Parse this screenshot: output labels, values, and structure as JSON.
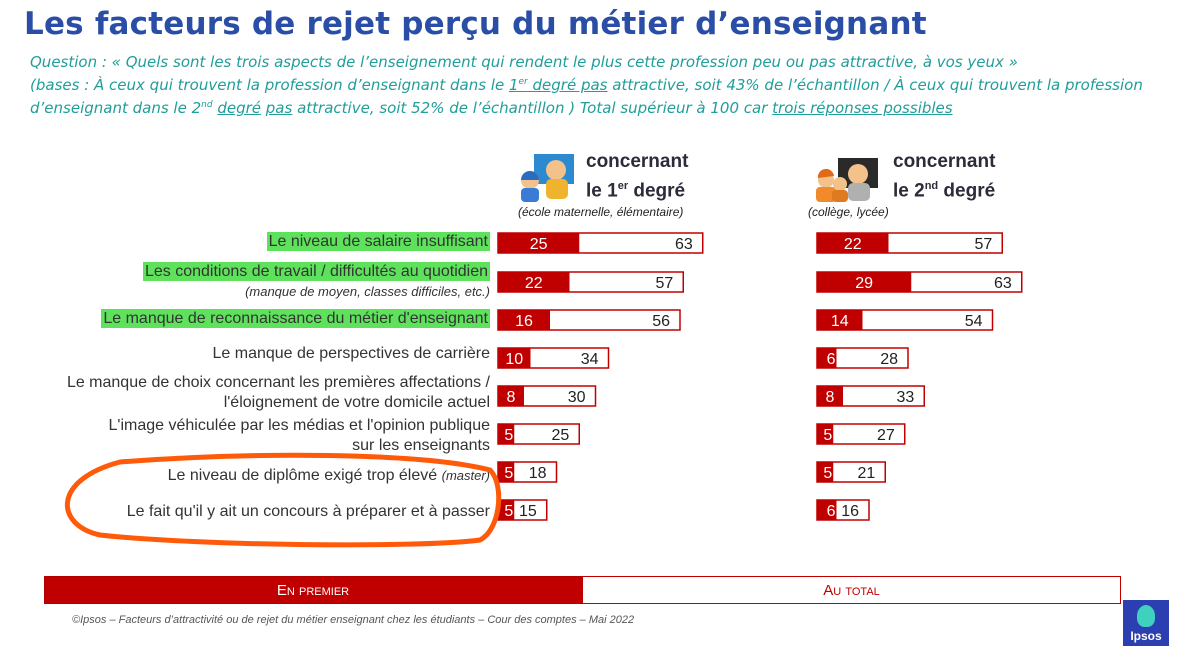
{
  "header": {
    "title": "Les facteurs de rejet perçu du métier d’enseignant",
    "question_line1": "Question : « Quels sont les trois aspects de l’enseignement qui rendent le plus cette profession peu ou pas attractive, à vos yeux  »",
    "bases_a": "(bases : À ceux qui trouvent la profession d’enseignant dans le ",
    "bases_1er": "1",
    "bases_er": "er",
    "bases_degre_pas": " degré pas",
    "bases_b": " attractive, soit 43% de l’échantillon / À ceux qui trouvent la profession",
    "bases_c": "d’enseignant dans le  2",
    "bases_nd": "nd",
    "bases_degre": "degré",
    "bases_pas": "pas",
    "bases_d": " attractive, soit 52% de l’échantillon ) Total supérieur à 100 car ",
    "bases_trois": "trois réponses possibles"
  },
  "groups": {
    "g1": {
      "label_a": "concernant",
      "label_b": "le 1",
      "label_sup": "er",
      "label_c": " degré",
      "sub": "(école maternelle, élémentaire)"
    },
    "g2": {
      "label_a": "concernant",
      "label_b": "le 2",
      "label_sup": "nd",
      "label_c": " degré",
      "sub": "(collège, lycée)"
    }
  },
  "rows": [
    {
      "label": "Le niveau de salaire insuffisant",
      "highlight": true
    },
    {
      "label": "Les conditions de travail / difficultés au quotidien",
      "note": "(manque de moyen, classes difficiles, etc.)",
      "highlight": true
    },
    {
      "label": "Le manque de reconnaissance du métier d'enseignant",
      "highlight": true
    },
    {
      "label": "Le manque de perspectives de carrière"
    },
    {
      "label": "Le manque de choix concernant les premières affectations /",
      "label2": "l'éloignement de votre domicile actuel"
    },
    {
      "label": "L'image véhiculée par les médias et l'opinion publique",
      "label2": "sur les enseignants"
    },
    {
      "label": "Le niveau de diplôme exigé trop élevé",
      "note_inline": "(master)"
    },
    {
      "label": "Le fait qu'il y ait un concours à préparer et à passer"
    }
  ],
  "legend": {
    "first": "En premier",
    "total": "Au total"
  },
  "source": "©Ipsos – Facteurs d’attractivité ou de rejet du métier enseignant chez les étudiants – Cour des comptes – Mai 2022",
  "logo": "Ipsos",
  "colors": {
    "first": "#c00000",
    "title": "#2a4ea6",
    "question": "#1f9e9a",
    "highlight": "#5ee25b",
    "circle": "#ff5a0a"
  },
  "chart_data": {
    "type": "bar",
    "categories": [
      "Le niveau de salaire insuffisant",
      "Les conditions de travail / difficultés au quotidien",
      "Le manque de reconnaissance du métier d'enseignant",
      "Le manque de perspectives de carrière",
      "Le manque de choix concernant les premières affectations / l'éloignement de votre domicile actuel",
      "L'image véhiculée par les médias et l'opinion publique sur les enseignants",
      "Le niveau de diplôme exigé trop élevé",
      "Le fait qu'il y ait un concours à préparer et à passer"
    ],
    "series": [
      {
        "name": "le 1er degré — En premier",
        "values": [
          25,
          22,
          16,
          10,
          8,
          5,
          5,
          5
        ]
      },
      {
        "name": "le 1er degré — Au total",
        "values": [
          63,
          57,
          56,
          34,
          30,
          25,
          18,
          15
        ]
      },
      {
        "name": "le 2nd degré — En premier",
        "values": [
          22,
          29,
          14,
          6,
          8,
          5,
          5,
          6
        ]
      },
      {
        "name": "le 2nd degré — Au total",
        "values": [
          57,
          63,
          54,
          28,
          33,
          27,
          21,
          16
        ]
      }
    ]
  }
}
